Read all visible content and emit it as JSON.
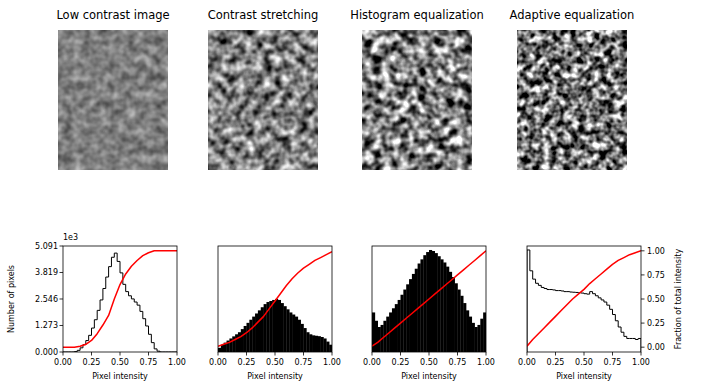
{
  "chart_data": [
    {
      "type": "histogram",
      "title": "Low contrast image",
      "xlabel": "Pixel intensity",
      "ylabel": "Number of pixels",
      "y_offset_text": "1e3",
      "bins": [
        0,
        0.025,
        0.05,
        0.075,
        0.1,
        0.125,
        0.15,
        0.175,
        0.2,
        0.225,
        0.25,
        0.275,
        0.3,
        0.325,
        0.35,
        0.375,
        0.4,
        0.425,
        0.45,
        0.475,
        0.5,
        0.525,
        0.55,
        0.575,
        0.6,
        0.625,
        0.65,
        0.675,
        0.7,
        0.725,
        0.75,
        0.775,
        0.8,
        0.825,
        0.85,
        0.875,
        0.9,
        0.925,
        0.95,
        0.975,
        1
      ],
      "series": [
        {
          "type": "step",
          "color": "#000000",
          "values": [
            0,
            0,
            0,
            0,
            20,
            80,
            200,
            350,
            550,
            800,
            1150,
            1550,
            2000,
            2500,
            3050,
            3600,
            4100,
            4550,
            4750,
            4350,
            3800,
            3250,
            2900,
            2700,
            2550,
            2400,
            2250,
            1950,
            1600,
            1250,
            850,
            450,
            150,
            40,
            0,
            0,
            0,
            0,
            0,
            0
          ]
        },
        {
          "type": "line",
          "color": "#ff0000",
          "axis": "y2",
          "x": [
            0,
            0.05,
            0.1,
            0.15,
            0.2,
            0.25,
            0.3,
            0.35,
            0.4,
            0.45,
            0.5,
            0.55,
            0.6,
            0.65,
            0.7,
            0.75,
            0.8,
            0.85,
            0.9,
            0.95,
            1
          ],
          "values": [
            0,
            0,
            0,
            0.01,
            0.03,
            0.07,
            0.14,
            0.23,
            0.33,
            0.5,
            0.65,
            0.76,
            0.84,
            0.9,
            0.95,
            0.98,
            1,
            1,
            1,
            1,
            1
          ]
        }
      ],
      "xlim": [
        0,
        1
      ],
      "xticks": [
        {
          "value": 0,
          "label": "0.00"
        },
        {
          "value": 0.25,
          "label": "0.25"
        },
        {
          "value": 0.5,
          "label": "0.50"
        },
        {
          "value": 0.75,
          "label": "0.75"
        },
        {
          "value": 1,
          "label": "1.00"
        }
      ],
      "ylim": [
        0,
        5091
      ],
      "yticks": [
        {
          "value": 0,
          "label": "0.000"
        },
        {
          "value": 1273,
          "label": "1.273"
        },
        {
          "value": 2546,
          "label": "2.546"
        },
        {
          "value": 3819,
          "label": "3.819"
        },
        {
          "value": 5091,
          "label": "5.091"
        }
      ],
      "y2lim": [
        -0.05,
        1.05
      ]
    },
    {
      "type": "histogram",
      "title": "Contrast stretching",
      "xlabel": "Pixel intensity",
      "bins": [
        0,
        0.025,
        0.05,
        0.075,
        0.1,
        0.125,
        0.15,
        0.175,
        0.2,
        0.225,
        0.25,
        0.275,
        0.3,
        0.325,
        0.35,
        0.375,
        0.4,
        0.425,
        0.45,
        0.475,
        0.5,
        0.525,
        0.55,
        0.575,
        0.6,
        0.625,
        0.65,
        0.675,
        0.7,
        0.725,
        0.75,
        0.775,
        0.8,
        0.825,
        0.85,
        0.875,
        0.9,
        0.925,
        0.95,
        0.975,
        1
      ],
      "series": [
        {
          "type": "bar",
          "color": "#000000",
          "values": [
            200,
            350,
            450,
            550,
            650,
            750,
            850,
            950,
            1100,
            1250,
            1400,
            1550,
            1700,
            1850,
            2000,
            2150,
            2300,
            2400,
            2450,
            2500,
            2550,
            2500,
            2350,
            2200,
            2050,
            1900,
            1800,
            1700,
            1550,
            1350,
            1150,
            950,
            850,
            800,
            780,
            760,
            720,
            650,
            500,
            350
          ]
        },
        {
          "type": "line",
          "color": "#ff0000",
          "axis": "y2",
          "x": [
            0,
            0.05,
            0.1,
            0.15,
            0.2,
            0.25,
            0.3,
            0.35,
            0.4,
            0.45,
            0.5,
            0.55,
            0.6,
            0.65,
            0.7,
            0.75,
            0.8,
            0.85,
            0.9,
            0.95,
            1
          ],
          "values": [
            0.01,
            0.03,
            0.05,
            0.08,
            0.11,
            0.15,
            0.2,
            0.26,
            0.32,
            0.4,
            0.48,
            0.56,
            0.64,
            0.71,
            0.77,
            0.82,
            0.86,
            0.9,
            0.93,
            0.96,
            0.99
          ]
        }
      ],
      "xlim": [
        0,
        1
      ],
      "xticks": [
        {
          "value": 0,
          "label": "0.00"
        },
        {
          "value": 0.25,
          "label": "0.25"
        },
        {
          "value": 0.5,
          "label": "0.50"
        },
        {
          "value": 0.75,
          "label": "0.75"
        },
        {
          "value": 1,
          "label": "1.00"
        }
      ],
      "ylim": [
        0,
        5091
      ],
      "y2lim": [
        -0.05,
        1.05
      ]
    },
    {
      "type": "histogram",
      "title": "Histogram equalization",
      "xlabel": "Pixel intensity",
      "bins": [
        0,
        0.025,
        0.05,
        0.075,
        0.1,
        0.125,
        0.15,
        0.175,
        0.2,
        0.225,
        0.25,
        0.275,
        0.3,
        0.325,
        0.35,
        0.375,
        0.4,
        0.425,
        0.45,
        0.475,
        0.5,
        0.525,
        0.55,
        0.575,
        0.6,
        0.625,
        0.65,
        0.675,
        0.7,
        0.725,
        0.75,
        0.775,
        0.8,
        0.825,
        0.85,
        0.875,
        0.9,
        0.925,
        0.95,
        0.975,
        1
      ],
      "series": [
        {
          "type": "bar",
          "color": "#000000",
          "values": [
            1900,
            1500,
            1200,
            1300,
            1500,
            1700,
            1900,
            2100,
            2300,
            2500,
            2750,
            3000,
            3250,
            3500,
            3750,
            4000,
            4250,
            4450,
            4650,
            4800,
            4900,
            4850,
            4750,
            4600,
            4450,
            4300,
            4100,
            3850,
            3600,
            3300,
            3000,
            2700,
            2350,
            2000,
            1700,
            1400,
            1200,
            1300,
            1600,
            1900
          ]
        },
        {
          "type": "line",
          "color": "#ff0000",
          "axis": "y2",
          "x": [
            0,
            0.05,
            0.1,
            0.15,
            0.2,
            0.25,
            0.3,
            0.35,
            0.4,
            0.45,
            0.5,
            0.55,
            0.6,
            0.65,
            0.7,
            0.75,
            0.8,
            0.85,
            0.9,
            0.95,
            1
          ],
          "values": [
            0.01,
            0.05,
            0.1,
            0.15,
            0.2,
            0.25,
            0.3,
            0.35,
            0.4,
            0.45,
            0.5,
            0.55,
            0.6,
            0.65,
            0.7,
            0.75,
            0.8,
            0.85,
            0.9,
            0.95,
            1
          ]
        }
      ],
      "xlim": [
        0,
        1
      ],
      "xticks": [
        {
          "value": 0,
          "label": "0.00"
        },
        {
          "value": 0.25,
          "label": "0.25"
        },
        {
          "value": 0.5,
          "label": "0.50"
        },
        {
          "value": 0.75,
          "label": "0.75"
        },
        {
          "value": 1,
          "label": "1.00"
        }
      ],
      "ylim": [
        0,
        5091
      ],
      "y2lim": [
        -0.05,
        1.05
      ]
    },
    {
      "type": "histogram",
      "title": "Adaptive equalization",
      "xlabel": "Pixel intensity",
      "y2label": "Fraction of total intensity",
      "bins": [
        0,
        0.025,
        0.05,
        0.075,
        0.1,
        0.125,
        0.15,
        0.175,
        0.2,
        0.225,
        0.25,
        0.275,
        0.3,
        0.325,
        0.35,
        0.375,
        0.4,
        0.425,
        0.45,
        0.475,
        0.5,
        0.525,
        0.55,
        0.575,
        0.6,
        0.625,
        0.65,
        0.675,
        0.7,
        0.725,
        0.75,
        0.775,
        0.8,
        0.825,
        0.85,
        0.875,
        0.9,
        0.925,
        0.95,
        0.975,
        1
      ],
      "series": [
        {
          "type": "step",
          "color": "#000000",
          "values": [
            4900,
            3900,
            3500,
            3300,
            3200,
            3100,
            3050,
            3000,
            3000,
            2980,
            2950,
            2950,
            2930,
            2900,
            2900,
            2880,
            2870,
            2860,
            2850,
            2830,
            2800,
            2780,
            2900,
            2800,
            2700,
            2600,
            2500,
            2400,
            2250,
            2050,
            1800,
            1500,
            1200,
            950,
            750,
            650,
            650,
            650,
            600,
            650
          ]
        },
        {
          "type": "line",
          "color": "#ff0000",
          "axis": "y2",
          "x": [
            0,
            0.05,
            0.1,
            0.15,
            0.2,
            0.25,
            0.3,
            0.35,
            0.4,
            0.45,
            0.5,
            0.55,
            0.6,
            0.65,
            0.7,
            0.75,
            0.8,
            0.85,
            0.9,
            0.95,
            1
          ],
          "values": [
            0.01,
            0.08,
            0.14,
            0.2,
            0.26,
            0.32,
            0.38,
            0.44,
            0.5,
            0.55,
            0.6,
            0.66,
            0.71,
            0.76,
            0.81,
            0.86,
            0.9,
            0.93,
            0.96,
            0.98,
            1
          ]
        }
      ],
      "xlim": [
        0,
        1
      ],
      "xticks": [
        {
          "value": 0,
          "label": "0.00"
        },
        {
          "value": 0.25,
          "label": "0.25"
        },
        {
          "value": 0.5,
          "label": "0.50"
        },
        {
          "value": 0.75,
          "label": "0.75"
        },
        {
          "value": 1,
          "label": "1.00"
        }
      ],
      "ylim": [
        0,
        5091
      ],
      "y2lim": [
        -0.05,
        1.05
      ],
      "y2ticks": [
        {
          "value": 0,
          "label": "0.00"
        },
        {
          "value": 0.25,
          "label": "0.25"
        },
        {
          "value": 0.5,
          "label": "0.50"
        },
        {
          "value": 0.75,
          "label": "0.75"
        },
        {
          "value": 1,
          "label": "1.00"
        }
      ]
    }
  ]
}
